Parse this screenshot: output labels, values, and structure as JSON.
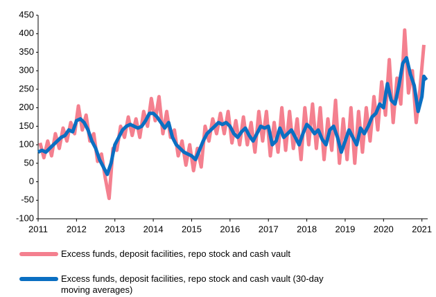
{
  "chart_data": {
    "type": "line",
    "xlim": [
      2011,
      2021.15
    ],
    "xticks": [
      2011,
      2012,
      2013,
      2014,
      2015,
      2016,
      2017,
      2018,
      2019,
      2020,
      2021
    ],
    "ylim": [
      -100,
      450
    ],
    "yticks": [
      -100,
      -50,
      0,
      50,
      100,
      150,
      200,
      250,
      300,
      350,
      400,
      450
    ],
    "grid": false,
    "series": [
      {
        "name": "Excess funds, deposit facilities, repo stock and cash vault",
        "color": "#f4808f",
        "width": 5,
        "x": [
          2011.05,
          2011.15,
          2011.25,
          2011.35,
          2011.45,
          2011.55,
          2011.65,
          2011.75,
          2011.85,
          2011.95,
          2012.05,
          2012.15,
          2012.25,
          2012.35,
          2012.45,
          2012.55,
          2012.65,
          2012.75,
          2012.85,
          2012.95,
          2013.05,
          2013.15,
          2013.25,
          2013.35,
          2013.45,
          2013.55,
          2013.65,
          2013.75,
          2013.85,
          2013.95,
          2014.05,
          2014.15,
          2014.25,
          2014.35,
          2014.45,
          2014.55,
          2014.65,
          2014.75,
          2014.85,
          2014.95,
          2015.05,
          2015.15,
          2015.25,
          2015.35,
          2015.45,
          2015.55,
          2015.65,
          2015.75,
          2015.85,
          2015.95,
          2016.05,
          2016.15,
          2016.25,
          2016.35,
          2016.45,
          2016.55,
          2016.65,
          2016.75,
          2016.85,
          2016.95,
          2017.05,
          2017.15,
          2017.25,
          2017.35,
          2017.45,
          2017.55,
          2017.65,
          2017.75,
          2017.85,
          2017.95,
          2018.05,
          2018.15,
          2018.25,
          2018.35,
          2018.45,
          2018.55,
          2018.65,
          2018.75,
          2018.85,
          2018.95,
          2019.05,
          2019.15,
          2019.25,
          2019.35,
          2019.45,
          2019.55,
          2019.65,
          2019.75,
          2019.85,
          2019.95,
          2020.05,
          2020.15,
          2020.25,
          2020.35,
          2020.45,
          2020.55,
          2020.65,
          2020.75,
          2020.85,
          2020.95,
          2021.05
        ],
        "values": [
          105,
          65,
          110,
          70,
          130,
          90,
          145,
          110,
          160,
          130,
          205,
          140,
          180,
          110,
          130,
          55,
          75,
          10,
          -45,
          90,
          85,
          150,
          120,
          175,
          125,
          170,
          120,
          190,
          150,
          225,
          165,
          230,
          130,
          190,
          120,
          140,
          70,
          110,
          45,
          100,
          30,
          90,
          40,
          150,
          110,
          170,
          130,
          185,
          130,
          190,
          105,
          165,
          100,
          175,
          100,
          160,
          80,
          190,
          110,
          190,
          70,
          160,
          80,
          200,
          85,
          190,
          90,
          170,
          60,
          200,
          100,
          210,
          90,
          200,
          60,
          170,
          85,
          220,
          50,
          170,
          60,
          200,
          50,
          190,
          80,
          200,
          110,
          230,
          140,
          270,
          180,
          330,
          160,
          280,
          210,
          410,
          240,
          300,
          160,
          250,
          370
        ]
      },
      {
        "name": "Excess funds, deposit facilities, repo stock and cash vault (30-day moving averages)",
        "color": "#0a6fc2",
        "width": 5,
        "x": [
          2011,
          2011.1,
          2011.2,
          2011.3,
          2011.4,
          2011.5,
          2011.6,
          2011.7,
          2011.8,
          2011.9,
          2012,
          2012.1,
          2012.2,
          2012.3,
          2012.4,
          2012.5,
          2012.6,
          2012.7,
          2012.8,
          2012.9,
          2013,
          2013.1,
          2013.2,
          2013.3,
          2013.4,
          2013.5,
          2013.6,
          2013.7,
          2013.8,
          2013.9,
          2014,
          2014.1,
          2014.2,
          2014.3,
          2014.4,
          2014.5,
          2014.6,
          2014.7,
          2014.8,
          2014.9,
          2015,
          2015.1,
          2015.2,
          2015.3,
          2015.4,
          2015.5,
          2015.6,
          2015.7,
          2015.8,
          2015.9,
          2016,
          2016.1,
          2016.2,
          2016.3,
          2016.4,
          2016.5,
          2016.6,
          2016.7,
          2016.8,
          2016.9,
          2017,
          2017.1,
          2017.2,
          2017.3,
          2017.4,
          2017.5,
          2017.6,
          2017.7,
          2017.8,
          2017.9,
          2018,
          2018.1,
          2018.2,
          2018.3,
          2018.4,
          2018.5,
          2018.6,
          2018.7,
          2018.8,
          2018.9,
          2019,
          2019.1,
          2019.2,
          2019.3,
          2019.4,
          2019.5,
          2019.6,
          2019.7,
          2019.8,
          2019.9,
          2020,
          2020.1,
          2020.2,
          2020.3,
          2020.4,
          2020.5,
          2020.6,
          2020.7,
          2020.8,
          2020.9,
          2021,
          2021.05,
          2021.12
        ],
        "values": [
          80,
          85,
          80,
          90,
          100,
          110,
          120,
          125,
          140,
          135,
          165,
          170,
          160,
          140,
          110,
          90,
          60,
          40,
          20,
          50,
          100,
          120,
          140,
          150,
          155,
          150,
          145,
          150,
          165,
          185,
          185,
          175,
          160,
          145,
          160,
          120,
          100,
          90,
          80,
          75,
          70,
          60,
          85,
          110,
          130,
          140,
          150,
          160,
          155,
          160,
          150,
          130,
          120,
          135,
          145,
          125,
          110,
          130,
          150,
          145,
          150,
          100,
          110,
          145,
          120,
          130,
          140,
          120,
          100,
          130,
          155,
          145,
          130,
          140,
          115,
          100,
          140,
          150,
          120,
          80,
          110,
          140,
          120,
          100,
          145,
          130,
          150,
          175,
          185,
          210,
          200,
          265,
          220,
          210,
          260,
          320,
          335,
          290,
          260,
          190,
          230,
          285,
          275
        ]
      }
    ]
  }
}
